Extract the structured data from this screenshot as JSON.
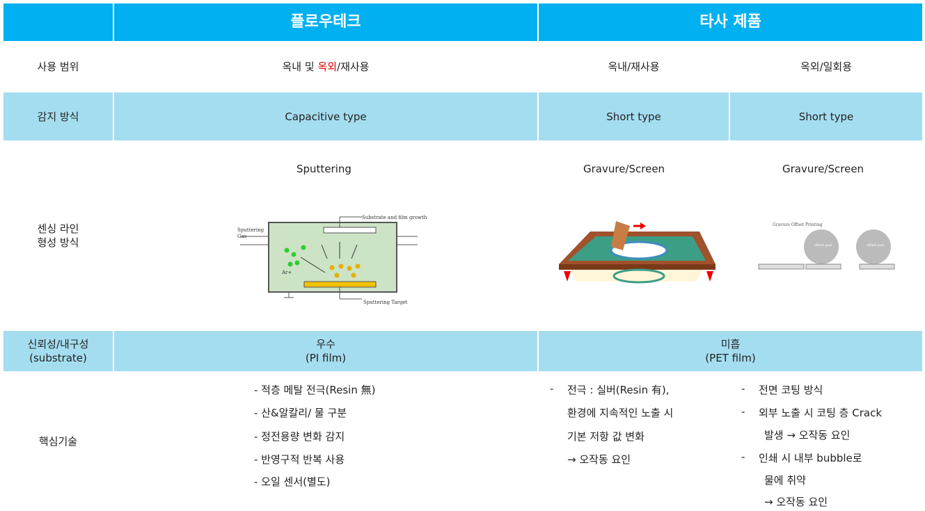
{
  "table": {
    "header": {
      "product": "플로우테크",
      "competitor": "타사 제품"
    },
    "usage": {
      "label": "사용 범위",
      "ours": [
        "옥내 및 ",
        "옥외",
        "/재사용"
      ],
      "other_a": "옥내/재사용",
      "other_b": "옥외/일회용"
    },
    "sensing": {
      "label": "감지 방식",
      "ours": "Capacitive type",
      "other_a": "Short type",
      "other_b": "Short type"
    },
    "forming": {
      "label": [
        "센싱 라인",
        "형성 방식"
      ],
      "ours": "Sputtering",
      "other_a": "Gravure/Screen",
      "other_b": "Gravure/Screen",
      "sputter_diagram": {
        "top": "Substrate and film growth",
        "gas": [
          "Sputtering",
          "Gas"
        ],
        "ion": "Ar+",
        "target": "Sputtering Target"
      },
      "gravure_diagram": {
        "title": "Gravure  Offset Printing",
        "pad": "offset pad"
      }
    },
    "reliability": {
      "label": [
        "신뢰성/내구성",
        "(substrate)"
      ],
      "ours": [
        "우수",
        "(PI film)"
      ],
      "other": [
        "미흡",
        "(PET film)"
      ]
    },
    "core": {
      "label": "핵심기술",
      "ours": [
        "- 적층 메탈 전극(Resin 無)",
        "- 산&알칼리/ 물 구분",
        "- 정전용량 변화 감지",
        "- 반영구적 반복 사용",
        "- 오일 센서(별도)"
      ],
      "other_a": [
        "-",
        "전극 : 실버(Resin 有),",
        "환경에 지속적인 노출 시",
        "기본 저항 값 변화",
        "→ 오작동 요인"
      ],
      "other_b": [
        "-",
        "전면 코팅 방식",
        "-",
        "외부 노출 시 코팅 층 Crack",
        "발생 → 오작동 요인",
        "-",
        "인쇄 시 내부 bubble로",
        "물에 취약",
        "→ 오작동 요인"
      ]
    }
  }
}
